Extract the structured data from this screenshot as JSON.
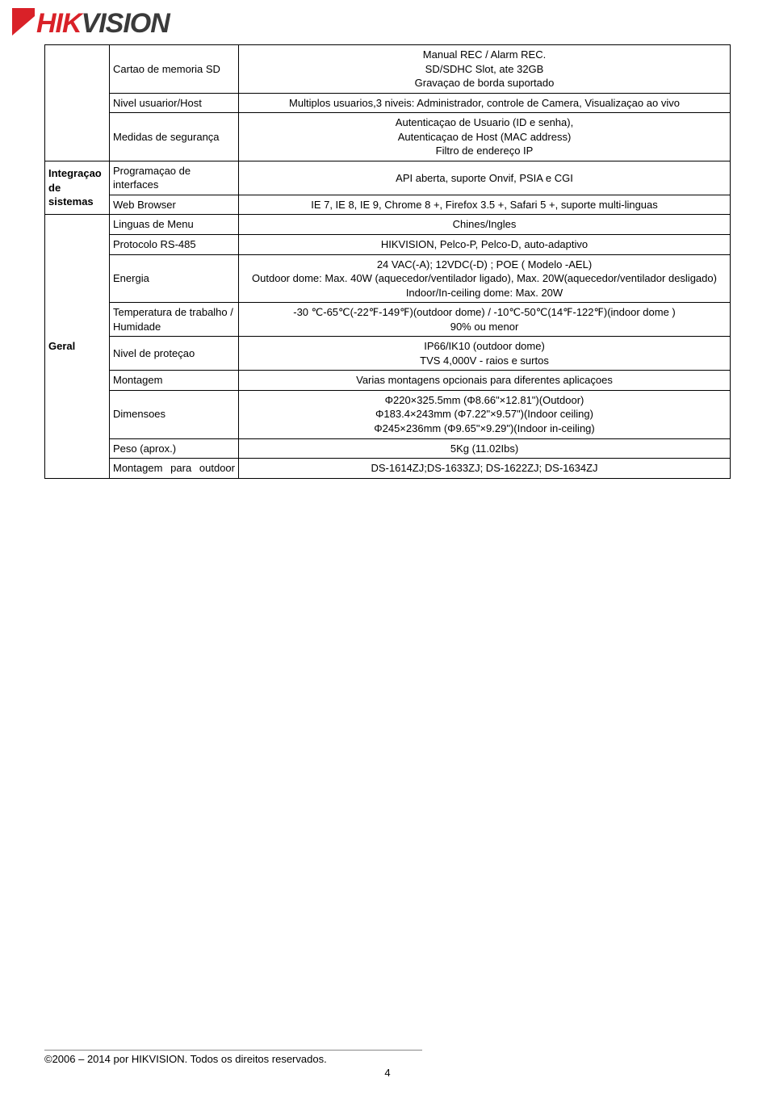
{
  "logo": {
    "hik": "HIK",
    "vision": "VISION",
    "red": "#d92128",
    "gray": "#3a3a3a"
  },
  "table": {
    "groups": {
      "integration": "Integraçao de sistemas",
      "general": "Geral"
    },
    "rows": [
      {
        "attr": "Cartao de memoria SD",
        "val": "Manual REC / Alarm REC.\nSD/SDHC Slot, ate 32GB\nGravaçao de borda suportado"
      },
      {
        "attr": "Nivel usuarior/Host",
        "val": "Multiplos usuarios,3 niveis: Administrador, controle de Camera, Visualizaçao ao vivo"
      },
      {
        "attr": "Medidas de segurança",
        "val": "Autenticaçao de Usuario (ID e senha),\nAutenticaçao de Host (MAC address)\nFiltro de endereço IP"
      },
      {
        "attr": "Programaçao de interfaces",
        "val": "API aberta, suporte  Onvif, PSIA e CGI"
      },
      {
        "attr": "Web Browser",
        "val": "IE 7, IE 8, IE 9, Chrome 8 +, Firefox 3.5 +, Safari 5 +, suporte multi-linguas"
      },
      {
        "attr": "Linguas de Menu",
        "val": "Chines/Ingles"
      },
      {
        "attr": "Protocolo RS-485",
        "val": "HIKVISION, Pelco-P, Pelco-D, auto-adaptivo"
      },
      {
        "attr": "Energia",
        "val": "24 VAC(-A); 12VDC(-D) ; POE ( Modelo -AEL)\nOutdoor dome: Max. 40W (aquecedor/ventilador ligado), Max. 20W(aquecedor/ventilador desligado)\nIndoor/In-ceiling dome: Max. 20W"
      },
      {
        "attr": "Temperatura de trabalho / Humidade",
        "attr_justify": true,
        "val": "-30 ℃-65℃(-22℉-149℉)(outdoor dome) / -10℃-50℃(14℉-122℉)(indoor dome )\n90% ou menor"
      },
      {
        "attr": "Nivel de proteçao",
        "val": "IP66/IK10  (outdoor dome)\nTVS 4,000V - raios e surtos"
      },
      {
        "attr": "Montagem",
        "val": "Varias montagens opcionais para diferentes aplicaçoes"
      },
      {
        "attr": "Dimensoes",
        "val": "Φ220×325.5mm (Φ8.66\"×12.81\")(Outdoor)\nΦ183.4×243mm (Φ7.22\"×9.57\")(Indoor ceiling)\nΦ245×236mm (Φ9.65\"×9.29\")(Indoor in-ceiling)"
      },
      {
        "attr": "Peso (aprox.)",
        "val": "5Kg (11.02Ibs)"
      },
      {
        "attr": "Montagem para outdoor",
        "attr_justify": true,
        "val": "DS-1614ZJ;DS-1633ZJ; DS-1622ZJ; DS-1634ZJ"
      }
    ]
  },
  "footer": {
    "copyright": "©2006 – 2014 por HIKVISION. Todos os direitos reservados.",
    "page": "4"
  }
}
